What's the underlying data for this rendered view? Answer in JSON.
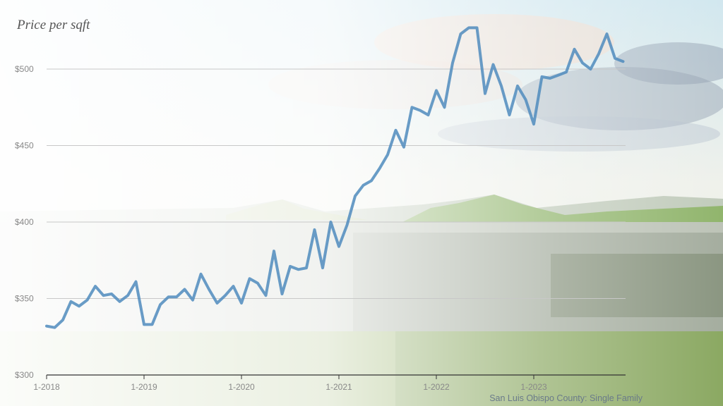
{
  "chart_data": {
    "type": "line",
    "title": "Price per sqft",
    "source": "San Luis Obispo County: Single Family",
    "ylim": [
      300,
      520
    ],
    "y_ticks": [
      "$300",
      "$350",
      "$400",
      "$450",
      "$500"
    ],
    "y_tick_values": [
      300,
      350,
      400,
      450,
      500
    ],
    "x_ticks": [
      "1-2018",
      "1-2019",
      "1-2020",
      "1-2021",
      "1-2022",
      "1-2023"
    ],
    "grid": true,
    "line_color": "#4f8bbd",
    "series": [
      {
        "values": [
          332,
          331,
          336,
          348,
          345,
          349,
          358,
          352,
          353,
          348,
          352,
          361,
          333,
          333,
          346,
          351,
          351,
          356,
          349,
          366,
          356,
          347,
          352,
          358,
          347,
          363,
          360,
          352,
          381,
          353,
          371,
          369,
          370,
          395,
          370,
          400,
          384,
          398,
          417,
          424,
          427,
          435,
          444,
          460,
          449,
          475,
          473,
          470,
          486,
          475,
          504,
          523,
          527,
          527,
          484,
          503,
          489,
          470,
          489,
          480,
          464,
          495,
          494,
          496,
          498,
          513,
          504,
          500,
          510,
          523,
          507,
          505
        ]
      }
    ]
  }
}
